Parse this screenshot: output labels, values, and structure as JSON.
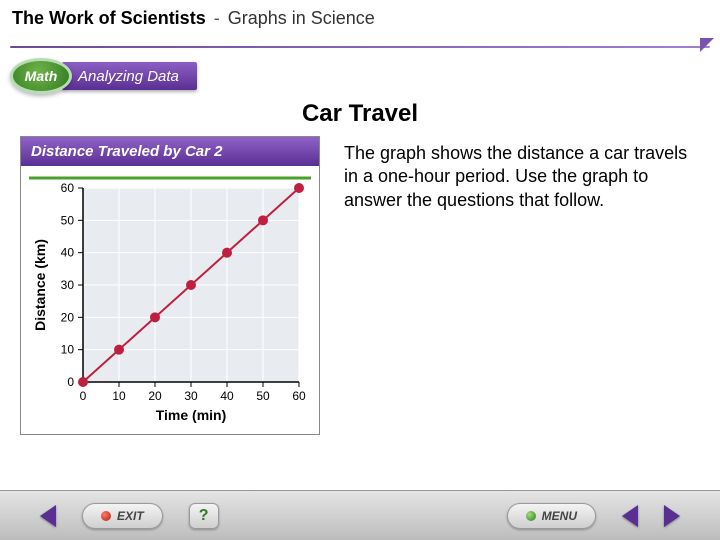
{
  "header": {
    "title_main": "The Work of Scientists",
    "separator": "-",
    "title_sub": "Graphs in Science"
  },
  "badges": {
    "math": "Math",
    "analyze": "Analyzing Data"
  },
  "slide": {
    "title": "Car Travel",
    "body": "The graph shows the distance a car travels in a one-hour period. Use the graph to answer the questions that follow."
  },
  "chart": {
    "caption": "Distance Traveled by Car 2",
    "type": "line",
    "xlabel": "Time (min)",
    "ylabel": "Distance (km)",
    "label_fontsize": 14,
    "tick_fontsize": 12,
    "xlim": [
      0,
      60
    ],
    "ylim": [
      0,
      60
    ],
    "xticks": [
      0,
      10,
      20,
      30,
      40,
      50,
      60
    ],
    "yticks": [
      0,
      10,
      20,
      30,
      40,
      50,
      60
    ],
    "x_values": [
      0,
      10,
      20,
      30,
      40,
      50,
      60
    ],
    "y_values": [
      0,
      10,
      20,
      30,
      40,
      50,
      60
    ],
    "line_color": "#c02040",
    "line_width": 2,
    "marker": "circle",
    "marker_color": "#c02040",
    "marker_size": 5,
    "plot_bg": "#e8ecf0",
    "outer_bg": "#ffffff",
    "grid_color": "#ffffff",
    "axis_color": "#000000",
    "divider_color": "#4aa02c"
  },
  "footer": {
    "exit": "EXIT",
    "menu": "MENU",
    "help": "?"
  }
}
